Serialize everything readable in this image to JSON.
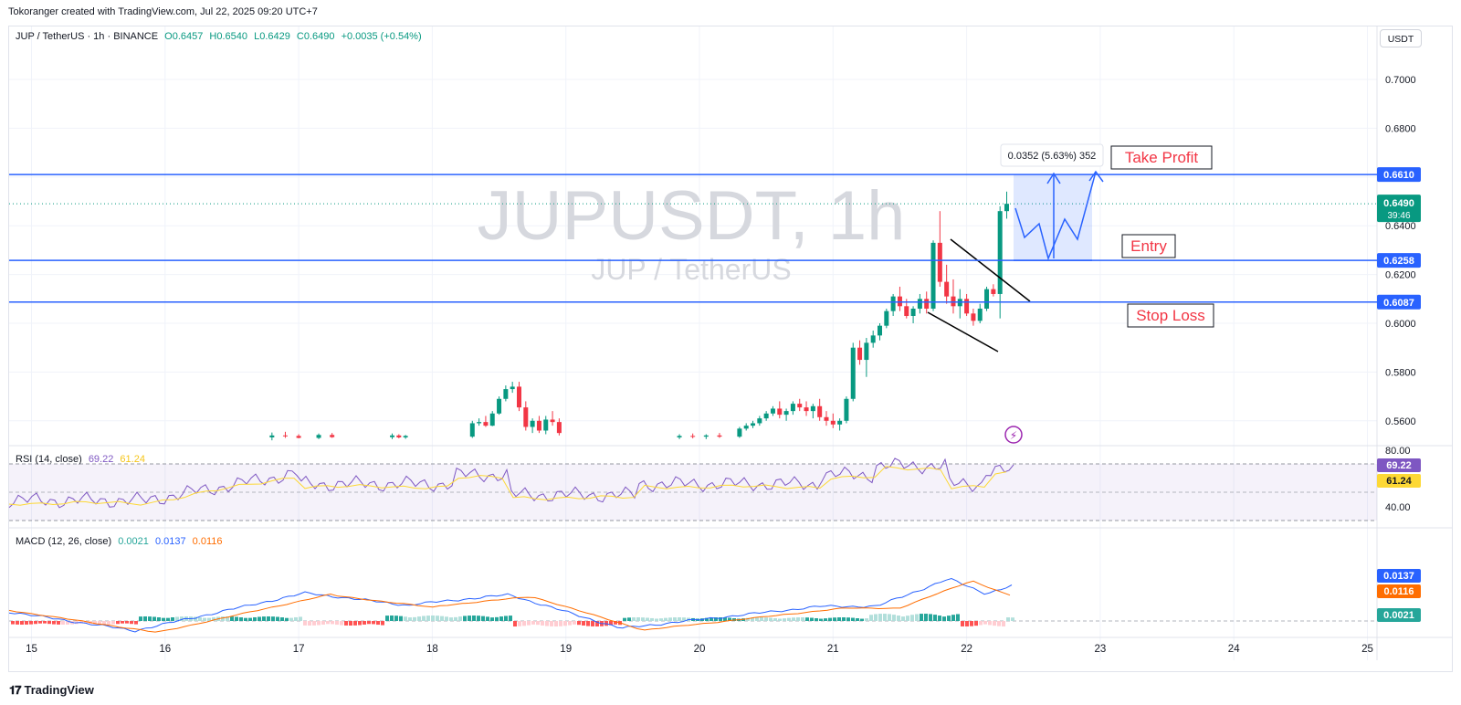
{
  "header": {
    "credit": "Tokoranger created with TradingView.com, Jul 22, 2025 09:20 UTC+7"
  },
  "legend": {
    "symbol": "JUP / TetherUS · 1h · BINANCE",
    "open": "O0.6457",
    "high": "H0.6540",
    "low": "L0.6429",
    "close": "C0.6490",
    "change": "+0.0035 (+0.54%)"
  },
  "currency_button": "USDT",
  "watermark": {
    "main": "JUPUSDT, 1h",
    "sub": "JUP / TetherUS"
  },
  "rsi_legend": {
    "label": "RSI (14, close)",
    "rsi": "69.22",
    "ma": "61.24"
  },
  "macd_legend": {
    "label": "MACD (12, 26, close)",
    "hist": "0.0021",
    "macd": "0.0137",
    "signal": "0.0116"
  },
  "footer": {
    "brand": "TradingView"
  },
  "colors": {
    "up": "#089981",
    "down": "#f23645",
    "level_line": "#2962ff",
    "annotation_red": "#f23645",
    "rsi": "#7e57c2",
    "rsi_ma": "#fdd835",
    "macd": "#2962ff",
    "signal": "#ff6d00"
  },
  "chart_data": {
    "type": "candlestick",
    "symbol": "JUPUSDT",
    "timeframe": "1h",
    "x_ticks": [
      "15",
      "16",
      "17",
      "18",
      "19",
      "20",
      "21",
      "22",
      "23",
      "24",
      "25"
    ],
    "y_ticks": [
      "0.7000",
      "0.6800",
      "0.6600",
      "0.6400",
      "0.6200",
      "0.6000",
      "0.5800",
      "0.5600"
    ],
    "y_range": [
      0.553,
      0.7145
    ],
    "levels": [
      {
        "name": "Take Profit",
        "value": 0.661,
        "label": "0.6610"
      },
      {
        "name": "Entry",
        "value": 0.6258,
        "label": "0.6258"
      },
      {
        "name": "Stop Loss",
        "value": 0.6087,
        "label": "0.6087"
      }
    ],
    "last_price": {
      "value": 0.649,
      "label": "0.6490",
      "countdown": "39:46"
    },
    "measure_label": "0.0352 (5.63%) 352",
    "candles_ohlc": [
      [
        16.8,
        0.5532,
        0.5552,
        0.552,
        0.554
      ],
      [
        16.9,
        0.554,
        0.5555,
        0.553,
        0.5538
      ],
      [
        17.0,
        0.5538,
        0.5545,
        0.5528,
        0.553
      ],
      [
        17.15,
        0.553,
        0.5548,
        0.5525,
        0.5542
      ],
      [
        17.25,
        0.5542,
        0.555,
        0.553,
        0.5533
      ],
      [
        17.7,
        0.5533,
        0.5548,
        0.5525,
        0.554
      ],
      [
        17.75,
        0.554,
        0.5545,
        0.5528,
        0.5532
      ],
      [
        17.8,
        0.5532,
        0.5542,
        0.5526,
        0.5538
      ],
      [
        18.3,
        0.5535,
        0.56,
        0.553,
        0.559
      ],
      [
        18.35,
        0.559,
        0.561,
        0.558,
        0.5595
      ],
      [
        18.4,
        0.5595,
        0.562,
        0.5575,
        0.558
      ],
      [
        18.45,
        0.558,
        0.564,
        0.5578,
        0.563
      ],
      [
        18.5,
        0.563,
        0.57,
        0.5625,
        0.569
      ],
      [
        18.55,
        0.569,
        0.5745,
        0.568,
        0.573
      ],
      [
        18.6,
        0.573,
        0.576,
        0.5715,
        0.574
      ],
      [
        18.65,
        0.574,
        0.576,
        0.564,
        0.5655
      ],
      [
        18.7,
        0.5655,
        0.568,
        0.556,
        0.5575
      ],
      [
        18.75,
        0.5575,
        0.561,
        0.555,
        0.56
      ],
      [
        18.8,
        0.56,
        0.562,
        0.555,
        0.556
      ],
      [
        18.85,
        0.556,
        0.562,
        0.5545,
        0.5605
      ],
      [
        18.9,
        0.5605,
        0.564,
        0.558,
        0.5595
      ],
      [
        18.95,
        0.5595,
        0.561,
        0.554,
        0.555
      ],
      [
        19.85,
        0.5532,
        0.5545,
        0.5525,
        0.5538
      ],
      [
        19.95,
        0.5538,
        0.5548,
        0.5528,
        0.5535
      ],
      [
        20.05,
        0.5535,
        0.5545,
        0.5525,
        0.554
      ],
      [
        20.15,
        0.554,
        0.555,
        0.553,
        0.5535
      ],
      [
        20.3,
        0.5535,
        0.5575,
        0.553,
        0.5568
      ],
      [
        20.35,
        0.5568,
        0.559,
        0.556,
        0.558
      ],
      [
        20.4,
        0.558,
        0.56,
        0.557,
        0.559
      ],
      [
        20.45,
        0.559,
        0.562,
        0.558,
        0.561
      ],
      [
        20.5,
        0.561,
        0.564,
        0.56,
        0.563
      ],
      [
        20.55,
        0.563,
        0.566,
        0.562,
        0.565
      ],
      [
        20.6,
        0.565,
        0.568,
        0.561,
        0.5625
      ],
      [
        20.65,
        0.5625,
        0.565,
        0.56,
        0.564
      ],
      [
        20.7,
        0.564,
        0.568,
        0.5625,
        0.567
      ],
      [
        20.75,
        0.567,
        0.569,
        0.564,
        0.5655
      ],
      [
        20.8,
        0.5655,
        0.568,
        0.562,
        0.564
      ],
      [
        20.85,
        0.564,
        0.567,
        0.561,
        0.566
      ],
      [
        20.9,
        0.566,
        0.569,
        0.56,
        0.5615
      ],
      [
        20.95,
        0.5615,
        0.564,
        0.558,
        0.56
      ],
      [
        21.0,
        0.56,
        0.563,
        0.557,
        0.5585
      ],
      [
        21.05,
        0.5585,
        0.561,
        0.556,
        0.56
      ],
      [
        21.1,
        0.56,
        0.57,
        0.559,
        0.569
      ],
      [
        21.15,
        0.569,
        0.592,
        0.568,
        0.59
      ],
      [
        21.2,
        0.59,
        0.593,
        0.583,
        0.585
      ],
      [
        21.25,
        0.585,
        0.594,
        0.578,
        0.592
      ],
      [
        21.3,
        0.592,
        0.597,
        0.59,
        0.595
      ],
      [
        21.35,
        0.595,
        0.6,
        0.593,
        0.599
      ],
      [
        21.4,
        0.599,
        0.606,
        0.598,
        0.605
      ],
      [
        21.45,
        0.605,
        0.612,
        0.603,
        0.611
      ],
      [
        21.5,
        0.611,
        0.615,
        0.605,
        0.607
      ],
      [
        21.55,
        0.607,
        0.61,
        0.602,
        0.603
      ],
      [
        21.6,
        0.603,
        0.607,
        0.6,
        0.606
      ],
      [
        21.65,
        0.606,
        0.612,
        0.604,
        0.61
      ],
      [
        21.7,
        0.61,
        0.613,
        0.604,
        0.606
      ],
      [
        21.75,
        0.606,
        0.634,
        0.605,
        0.633
      ],
      [
        21.8,
        0.633,
        0.646,
        0.615,
        0.617
      ],
      [
        21.85,
        0.617,
        0.624,
        0.608,
        0.611
      ],
      [
        21.9,
        0.611,
        0.618,
        0.604,
        0.607
      ],
      [
        21.95,
        0.607,
        0.614,
        0.602,
        0.61
      ],
      [
        22.0,
        0.61,
        0.612,
        0.603,
        0.604
      ],
      [
        22.05,
        0.604,
        0.606,
        0.599,
        0.601
      ],
      [
        22.1,
        0.601,
        0.608,
        0.6,
        0.606
      ],
      [
        22.15,
        0.606,
        0.615,
        0.605,
        0.614
      ],
      [
        22.2,
        0.614,
        0.616,
        0.611,
        0.612
      ],
      [
        22.25,
        0.612,
        0.648,
        0.602,
        0.646
      ],
      [
        22.3,
        0.646,
        0.654,
        0.6429,
        0.649
      ]
    ]
  }
}
